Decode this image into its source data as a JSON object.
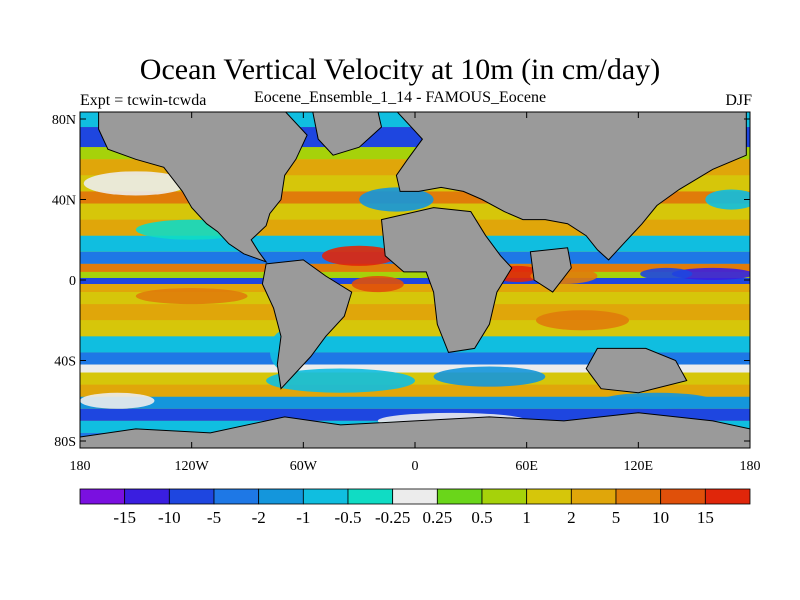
{
  "header": {
    "title": "Ocean Vertical Velocity at 10m (in cm/day)",
    "experiment": "Expt = tcwin-tcwda",
    "ensemble": "Eocene_Ensemble_1_14 - FAMOUS_Eocene",
    "season": "DJF"
  },
  "map": {
    "projection": "equirectangular",
    "lon_range": [
      -180,
      180
    ],
    "lat_range": [
      -90,
      90
    ],
    "land_color": "#9a9a9a",
    "lat_ticks": [
      {
        "value": 80,
        "label": "80N"
      },
      {
        "value": 40,
        "label": "40N"
      },
      {
        "value": 0,
        "label": "0"
      },
      {
        "value": -40,
        "label": "40S"
      },
      {
        "value": -80,
        "label": "80S"
      }
    ],
    "lon_ticks": [
      {
        "value": -180,
        "label": "180"
      },
      {
        "value": -120,
        "label": "120W"
      },
      {
        "value": -60,
        "label": "60W"
      },
      {
        "value": 0,
        "label": "0"
      },
      {
        "value": 60,
        "label": "60E"
      },
      {
        "value": 120,
        "label": "120E"
      },
      {
        "value": 180,
        "label": "180"
      }
    ]
  },
  "colorbar": {
    "colors": [
      "#7a10e0",
      "#3a1ee0",
      "#1e46e0",
      "#1e78e6",
      "#1496dc",
      "#10bee0",
      "#10dcc4",
      "#ececec",
      "#6ad61a",
      "#a6d20a",
      "#d6c60a",
      "#e0a60a",
      "#e07c0a",
      "#e0500a",
      "#e0260a"
    ],
    "labels": [
      "-15",
      "-10",
      "-5",
      "-2",
      "-1",
      "-0.5",
      "-0.25",
      "0.25",
      "0.5",
      "1",
      "2",
      "5",
      "10",
      "15"
    ]
  }
}
